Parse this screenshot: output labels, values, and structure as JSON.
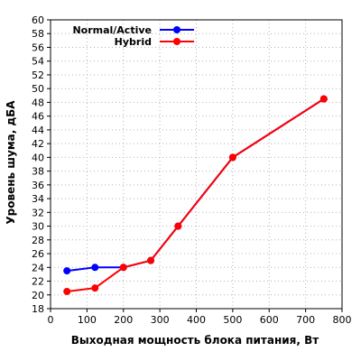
{
  "chart_data": {
    "type": "line",
    "xlabel": "Выходная мощность блока питания, Вт",
    "ylabel": "Уровень шума, дБА",
    "xlim": [
      0,
      800
    ],
    "ylim": [
      18,
      60
    ],
    "xticks": [
      "0",
      "100",
      "200",
      "300",
      "400",
      "500",
      "600",
      "700",
      "800"
    ],
    "yticks": [
      "18",
      "20",
      "22",
      "24",
      "26",
      "28",
      "30",
      "32",
      "34",
      "36",
      "38",
      "40",
      "42",
      "44",
      "46",
      "48",
      "50",
      "52",
      "54",
      "56",
      "58",
      "60"
    ],
    "grid": true,
    "legend_position": "top-left",
    "series": [
      {
        "name": "Normal/Active",
        "color": "#0000ff",
        "x": [
          45,
          122,
          200,
          275,
          350,
          500,
          750
        ],
        "y": [
          23.5,
          24.0,
          24.0,
          25.0,
          30.0,
          40.0,
          48.5
        ]
      },
      {
        "name": "Hybrid",
        "color": "#ff0000",
        "x": [
          45,
          122,
          200,
          275,
          350,
          500,
          750
        ],
        "y": [
          20.5,
          21.0,
          24.0,
          25.0,
          30.0,
          40.0,
          48.5
        ]
      }
    ]
  }
}
